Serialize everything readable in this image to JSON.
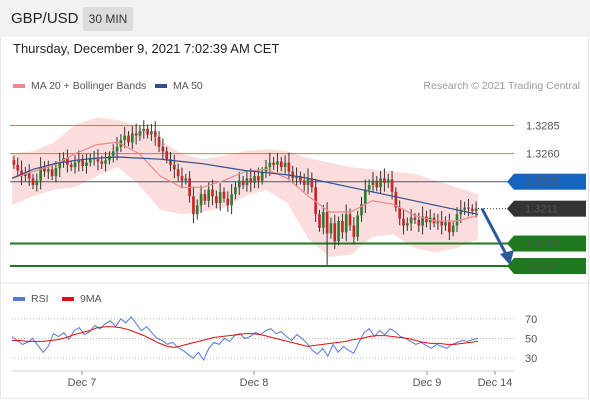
{
  "header": {
    "symbol": "GBP/USD",
    "timeframe": "30 MIN"
  },
  "datetime": "Thursday, December 9, 2021 7:02:39 AM CET",
  "legend": {
    "bb_label": "MA 20 + Bollinger Bands",
    "ma50_label": "MA 50",
    "credit": "Research © 2021 Trading Central"
  },
  "rsi_legend": {
    "rsi_label": "RSI",
    "ma_label": "9MA"
  },
  "colors": {
    "bb": "#f08a8a",
    "ma50": "#2f4f8f",
    "up": "#2e7d32",
    "down": "#c62828",
    "resistance": "#e53935",
    "pivot": "#1565c0",
    "support": "#1e7a1e",
    "current": "#333333",
    "arrow": "#2b5a9a",
    "rsi": "#5577dd",
    "rsi_ma": "#dd1111",
    "bb_fill": "#fbd5d5"
  },
  "chart_data": [
    {
      "type": "candlestick",
      "title": "GBP/USD 30 MIN",
      "ylim": [
        1.3152,
        1.3305
      ],
      "x_labels": [
        "Dec 7",
        "Dec 8",
        "Dec 9",
        "Dec 14"
      ],
      "levels": [
        {
          "value": 1.3285,
          "label": "1.3285",
          "kind": "resistance"
        },
        {
          "value": 1.326,
          "label": "1.3260",
          "kind": "resistance"
        },
        {
          "value": 1.3235,
          "label": "1.3235",
          "kind": "pivot"
        },
        {
          "value": 1.3211,
          "label": "1.3211",
          "kind": "current"
        },
        {
          "value": 1.318,
          "label": "1.3180",
          "kind": "support"
        },
        {
          "value": 1.316,
          "label": "1.3160",
          "kind": "support"
        }
      ],
      "series": [
        {
          "name": "Price",
          "close": [
            1.325,
            1.3245,
            1.324,
            1.3243,
            1.3238,
            1.3232,
            1.3236,
            1.3248,
            1.3244,
            1.3246,
            1.324,
            1.3247,
            1.3252,
            1.3256,
            1.325,
            1.3248,
            1.3252,
            1.3254,
            1.3249,
            1.3252,
            1.3256,
            1.3255,
            1.3253,
            1.3251,
            1.3254,
            1.3258,
            1.3262,
            1.3266,
            1.3272,
            1.3276,
            1.327,
            1.3278,
            1.3276,
            1.328,
            1.3282,
            1.3277,
            1.328,
            1.3275,
            1.3266,
            1.3262,
            1.3255,
            1.325,
            1.3246,
            1.324,
            1.3236,
            1.3238,
            1.3222,
            1.3206,
            1.3214,
            1.3224,
            1.3218,
            1.3228,
            1.3222,
            1.3216,
            1.3226,
            1.322,
            1.3214,
            1.3224,
            1.323,
            1.3236,
            1.3232,
            1.3238,
            1.3234,
            1.324,
            1.3236,
            1.3244,
            1.3248,
            1.3252,
            1.325,
            1.3253,
            1.3248,
            1.3252,
            1.3244,
            1.3238,
            1.324,
            1.3236,
            1.3232,
            1.3238,
            1.323,
            1.3206,
            1.3194,
            1.3208,
            1.3189,
            1.3198,
            1.3182,
            1.32,
            1.319,
            1.3206,
            1.3196,
            1.3186,
            1.3205,
            1.3215,
            1.3228,
            1.3232,
            1.3236,
            1.323,
            1.3238,
            1.3234,
            1.3237,
            1.3226,
            1.3212,
            1.3202,
            1.3196,
            1.3198,
            1.3203,
            1.3201,
            1.3196,
            1.3204,
            1.3199,
            1.3203,
            1.3198,
            1.32,
            1.3196,
            1.3199,
            1.319,
            1.3196,
            1.3206,
            1.321,
            1.3212,
            1.3211,
            1.3209,
            1.3211
          ]
        },
        {
          "name": "MA 50",
          "values": [
            1.3238,
            1.3246,
            1.3251,
            1.3254,
            1.3256,
            1.3257,
            1.3256,
            1.3255,
            1.3253,
            1.3251,
            1.3248,
            1.3245,
            1.3243,
            1.3241,
            1.3238,
            1.3234,
            1.323,
            1.3226,
            1.3222,
            1.3218,
            1.3214,
            1.321,
            1.3206
          ]
        },
        {
          "name": "MA 20",
          "values": [
            1.3238,
            1.3244,
            1.325,
            1.326,
            1.3268,
            1.327,
            1.326,
            1.324,
            1.323,
            1.323,
            1.3236,
            1.3244,
            1.3246,
            1.3238,
            1.3222,
            1.3208,
            1.3208,
            1.3218,
            1.3215,
            1.3205,
            1.32,
            1.32,
            1.3205
          ]
        },
        {
          "name": "Bollinger Upper",
          "values": [
            1.326,
            1.3262,
            1.327,
            1.3286,
            1.3292,
            1.329,
            1.3284,
            1.3272,
            1.326,
            1.3255,
            1.3258,
            1.3262,
            1.3264,
            1.3262,
            1.3256,
            1.3252,
            1.3248,
            1.3246,
            1.3244,
            1.3242,
            1.3236,
            1.323,
            1.3224
          ]
        },
        {
          "name": "Bollinger Lower",
          "values": [
            1.3214,
            1.3222,
            1.3228,
            1.323,
            1.324,
            1.3248,
            1.3232,
            1.321,
            1.3206,
            1.3208,
            1.3212,
            1.3222,
            1.3228,
            1.3216,
            1.3184,
            1.3168,
            1.317,
            1.3186,
            1.3188,
            1.3176,
            1.3172,
            1.3176,
            1.3184
          ]
        }
      ]
    },
    {
      "type": "line",
      "title": "RSI",
      "ylim": [
        20,
        80
      ],
      "yticks": [
        70,
        50,
        30
      ],
      "series": [
        {
          "name": "RSI",
          "values": [
            52,
            48,
            44,
            46,
            50,
            43,
            36,
            42,
            55,
            52,
            56,
            49,
            58,
            61,
            54,
            57,
            63,
            60,
            65,
            68,
            62,
            70,
            66,
            72,
            65,
            58,
            62,
            56,
            50,
            48,
            44,
            46,
            41,
            38,
            34,
            30,
            36,
            28,
            40,
            46,
            44,
            50,
            47,
            53,
            55,
            50,
            52,
            56,
            54,
            58,
            60,
            55,
            57,
            52,
            48,
            54,
            50,
            45,
            38,
            34,
            40,
            32,
            44,
            36,
            42,
            38,
            35,
            46,
            56,
            60,
            52,
            58,
            54,
            60,
            57,
            52,
            50,
            47,
            44,
            46,
            43,
            40,
            44,
            42,
            40,
            44,
            46,
            48,
            47,
            49,
            50
          ]
        },
        {
          "name": "9MA",
          "values": [
            48,
            48,
            47,
            47,
            47,
            48,
            49,
            51,
            54,
            56,
            58,
            61,
            62,
            62,
            61,
            59,
            56,
            53,
            49,
            45,
            42,
            41,
            43,
            45,
            47,
            49,
            51,
            52,
            53,
            54,
            55,
            55,
            54,
            52,
            50,
            48,
            46,
            44,
            42,
            43,
            44,
            45,
            46,
            47,
            49,
            50,
            52,
            53,
            53,
            52,
            51,
            50,
            48,
            46,
            45,
            45,
            44,
            44,
            45,
            46,
            47
          ]
        }
      ]
    }
  ]
}
